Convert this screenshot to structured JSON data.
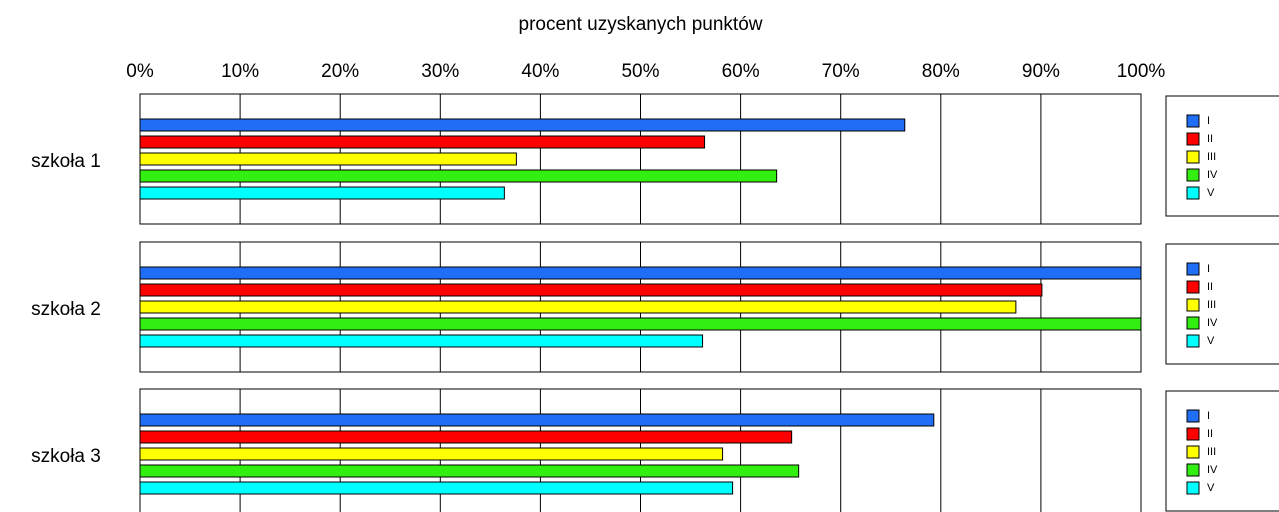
{
  "chart_data": [
    {
      "type": "bar",
      "orientation": "horizontal",
      "x_label": "procent uzyskanych punktów",
      "categories": [
        "szkoła 1"
      ],
      "xlim": [
        0,
        100
      ],
      "xticks": [
        {
          "value": 0,
          "label": "0%"
        },
        {
          "value": 10,
          "label": "10%"
        },
        {
          "value": 20,
          "label": "20%"
        },
        {
          "value": 30,
          "label": "30%"
        },
        {
          "value": 40,
          "label": "40%"
        },
        {
          "value": 50,
          "label": "50%"
        },
        {
          "value": 60,
          "label": "60%"
        },
        {
          "value": 70,
          "label": "70%"
        },
        {
          "value": 80,
          "label": "80%"
        },
        {
          "value": 90,
          "label": "90%"
        },
        {
          "value": 100,
          "label": "100%"
        }
      ],
      "grid": true,
      "legend": "right",
      "series": [
        {
          "name": "I",
          "color": "#1f6ef5",
          "values": [
            76.4
          ]
        },
        {
          "name": "II",
          "color": "#ff0000",
          "values": [
            56.4
          ]
        },
        {
          "name": "III",
          "color": "#ffff00",
          "values": [
            37.6
          ]
        },
        {
          "name": "IV",
          "color": "#33ee11",
          "values": [
            63.6
          ]
        },
        {
          "name": "V",
          "color": "#00ffff",
          "values": [
            36.4
          ]
        }
      ]
    },
    {
      "type": "bar",
      "orientation": "horizontal",
      "categories": [
        "szkoła 2"
      ],
      "xlim": [
        0,
        100
      ],
      "xticks": [
        0,
        10,
        20,
        30,
        40,
        50,
        60,
        70,
        80,
        90,
        100
      ],
      "grid": true,
      "legend": "right",
      "series": [
        {
          "name": "I",
          "color": "#1f6ef5",
          "values": [
            100
          ]
        },
        {
          "name": "II",
          "color": "#ff0000",
          "values": [
            90.1
          ]
        },
        {
          "name": "III",
          "color": "#ffff00",
          "values": [
            87.5
          ]
        },
        {
          "name": "IV",
          "color": "#33ee11",
          "values": [
            100
          ]
        },
        {
          "name": "V",
          "color": "#00ffff",
          "values": [
            56.2
          ]
        }
      ]
    },
    {
      "type": "bar",
      "orientation": "horizontal",
      "categories": [
        "szkoła 3"
      ],
      "xlim": [
        0,
        100
      ],
      "xticks": [
        0,
        10,
        20,
        30,
        40,
        50,
        60,
        70,
        80,
        90,
        100
      ],
      "grid": true,
      "legend": "right",
      "series": [
        {
          "name": "I",
          "color": "#1f6ef5",
          "values": [
            79.3
          ]
        },
        {
          "name": "II",
          "color": "#ff0000",
          "values": [
            65.1
          ]
        },
        {
          "name": "III",
          "color": "#ffff00",
          "values": [
            58.2
          ]
        },
        {
          "name": "IV",
          "color": "#33ee11",
          "values": [
            65.8
          ]
        },
        {
          "name": "V",
          "color": "#00ffff",
          "values": [
            59.2
          ]
        }
      ]
    }
  ]
}
